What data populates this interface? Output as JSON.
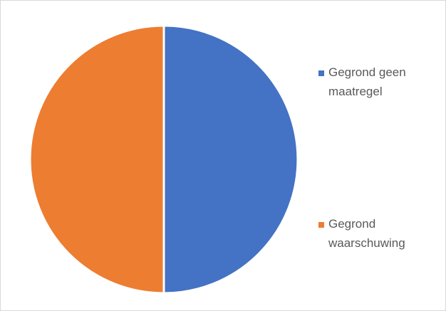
{
  "chart_data": {
    "type": "pie",
    "series": [
      {
        "name": "Gegrond geen maatregel",
        "color": "#4472c4",
        "values": [
          50
        ]
      },
      {
        "name": "Gegrond waarschuwing",
        "color": "#ed7d31",
        "values": [
          50
        ]
      }
    ],
    "legend": "right"
  }
}
